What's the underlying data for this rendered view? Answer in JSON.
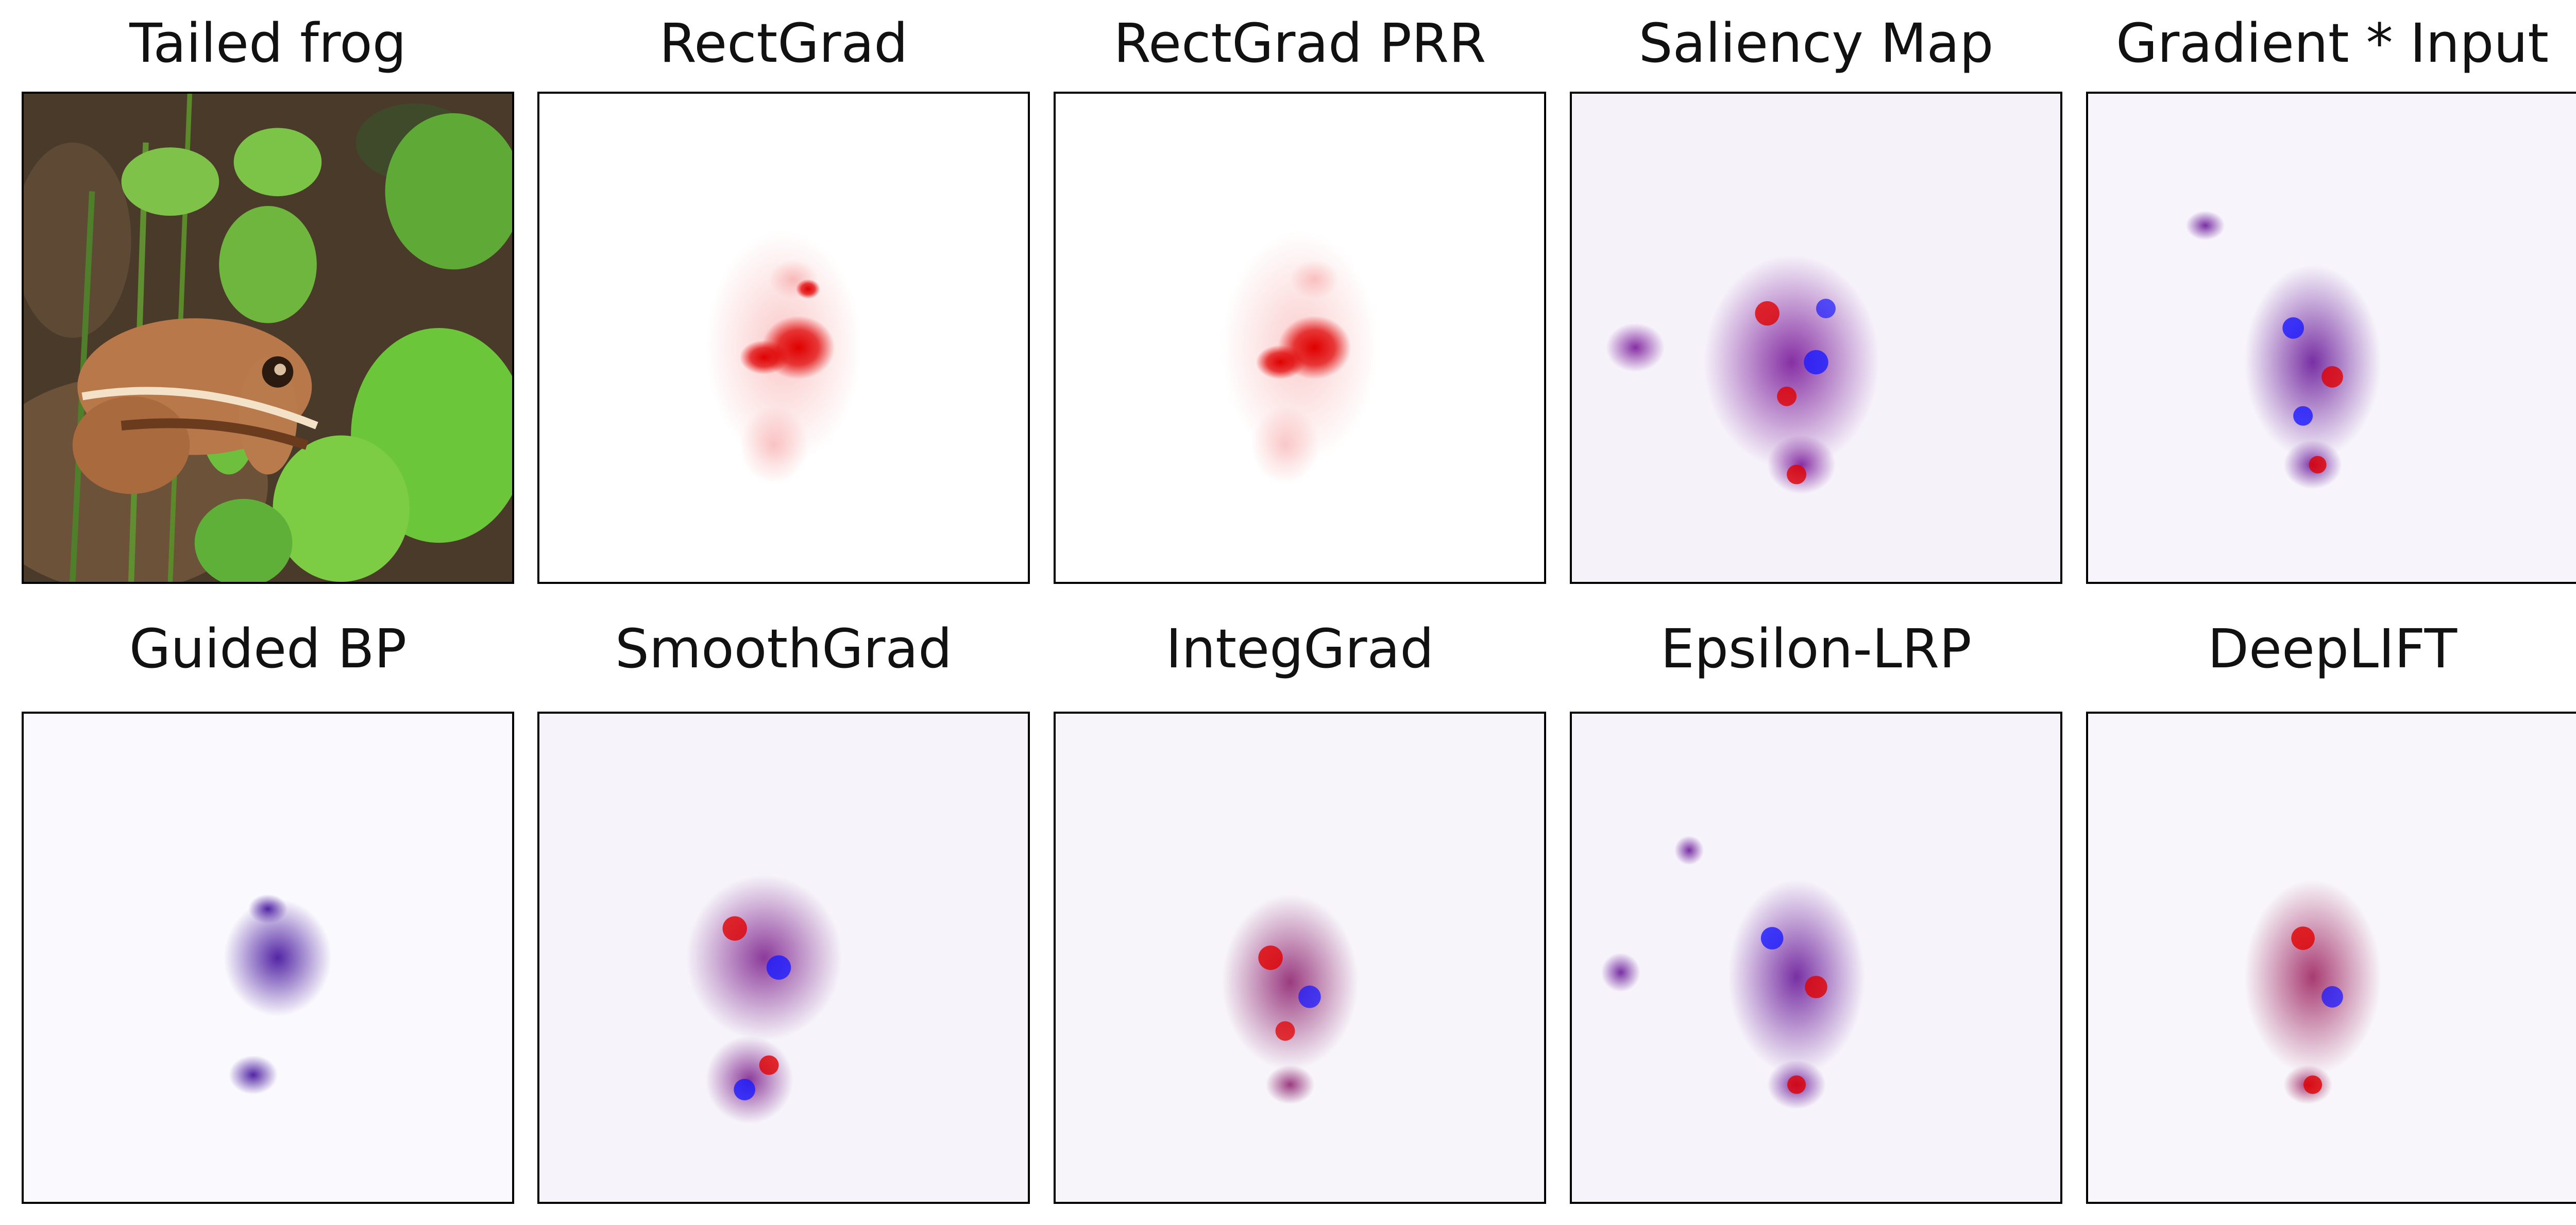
{
  "figure": {
    "rows": [
      {
        "panels": [
          {
            "id": "tailed-frog",
            "title": "Tailed frog",
            "kind": "photo"
          },
          {
            "id": "rectgrad",
            "title": "RectGrad",
            "kind": "sparse-red"
          },
          {
            "id": "rectgrad-prr",
            "title": "RectGrad PRR",
            "kind": "sparse-red"
          },
          {
            "id": "saliency-map",
            "title": "Saliency Map",
            "kind": "diverging"
          },
          {
            "id": "gradient-input",
            "title": "Gradient * Input",
            "kind": "diverging"
          }
        ]
      },
      {
        "panels": [
          {
            "id": "guided-bp",
            "title": "Guided BP",
            "kind": "purple-sparse"
          },
          {
            "id": "smoothgrad",
            "title": "SmoothGrad",
            "kind": "diverging"
          },
          {
            "id": "integgrad",
            "title": "IntegGrad",
            "kind": "diverging"
          },
          {
            "id": "epsilon-lrp",
            "title": "Epsilon-LRP",
            "kind": "diverging"
          },
          {
            "id": "deeplift",
            "title": "DeepLIFT",
            "kind": "diverging"
          }
        ]
      }
    ],
    "colors": {
      "positive": "#e00000",
      "negative": "#1a1aff",
      "background": "#ffffff",
      "leaf": "#6cc63a",
      "frog": "#b8784a",
      "ground": "#5a4530"
    }
  }
}
